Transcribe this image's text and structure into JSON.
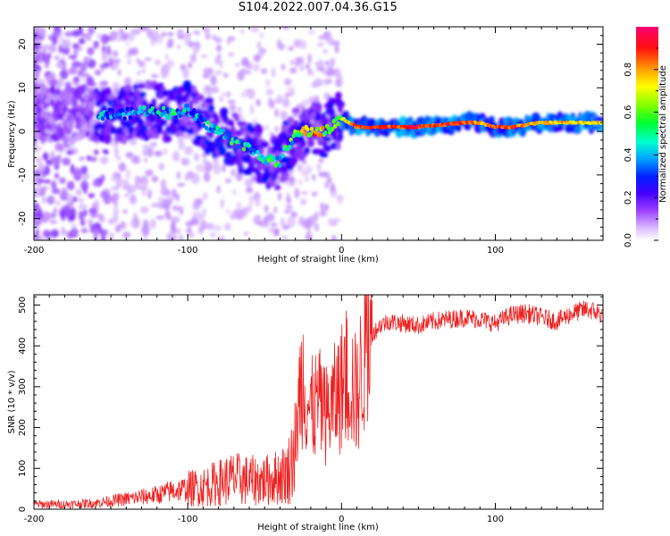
{
  "title": "S104.2022.007.04.36.G15",
  "chart_data": [
    {
      "type": "heatmap",
      "xlabel": "Height of straight line (km)",
      "ylabel": "Frequency (Hz)",
      "xlim": [
        -200,
        170
      ],
      "ylim": [
        -25,
        24
      ],
      "xticks": [
        -200,
        -100,
        0,
        100
      ],
      "yticks": [
        -20,
        -10,
        0,
        10,
        20
      ],
      "colorbar": {
        "label": "Normalized spectral amplitude",
        "range": [
          0,
          1
        ],
        "ticks": [
          "0.0",
          "0.2",
          "0.4",
          "0.6",
          "0.8"
        ],
        "colors": [
          "#ffffff",
          "#b980ff",
          "#6600ff",
          "#0000ff",
          "#00ccff",
          "#00ff66",
          "#66ff00",
          "#ffff00",
          "#ff8800",
          "#ff0000",
          "#ff0066"
        ]
      },
      "ridge": {
        "x": [
          -155,
          -140,
          -125,
          -110,
          -100,
          -90,
          -80,
          -70,
          -60,
          -50,
          -45,
          -40,
          -35,
          -30,
          -25,
          -20,
          -10,
          0,
          10,
          50,
          80,
          90,
          100,
          110,
          130,
          170
        ],
        "freq": [
          4,
          4,
          5,
          4,
          5,
          2,
          0,
          -2,
          -4,
          -6,
          -7,
          -7,
          -3,
          -1,
          0,
          0,
          0,
          3,
          1,
          1,
          2,
          2,
          1,
          1,
          2,
          2
        ],
        "amplitude": [
          0.45,
          0.4,
          0.45,
          0.5,
          0.45,
          0.5,
          0.5,
          0.55,
          0.5,
          0.55,
          0.55,
          0.5,
          0.6,
          0.6,
          0.7,
          0.85,
          0.75,
          0.65,
          0.9,
          0.95,
          0.9,
          0.8,
          0.9,
          0.85,
          0.8,
          0.75
        ]
      }
    },
    {
      "type": "line",
      "xlabel": "Height of straight line (km)",
      "ylabel": "SNR (10 * v/v)",
      "xlim": [
        -200,
        170
      ],
      "ylim": [
        0,
        525
      ],
      "xticks": [
        -200,
        -100,
        0,
        100
      ],
      "yticks": [
        0,
        100,
        200,
        300,
        400,
        500
      ],
      "color": "#ee2222",
      "series": [
        {
          "x": [
            -200,
            -180,
            -160,
            -150,
            -140,
            -130,
            -120,
            -110,
            -100,
            -90,
            -80,
            -70,
            -60,
            -50,
            -40,
            -35,
            -30,
            -27,
            -25,
            -22,
            -20,
            -15,
            -10,
            -5,
            0,
            5,
            10,
            15,
            20,
            25,
            30,
            40,
            50,
            60,
            70,
            80,
            90,
            100,
            110,
            120,
            130,
            140,
            150,
            160,
            170
          ],
          "y": [
            12,
            12,
            15,
            20,
            25,
            30,
            35,
            45,
            50,
            55,
            65,
            75,
            70,
            70,
            80,
            90,
            150,
            300,
            330,
            260,
            240,
            260,
            230,
            260,
            300,
            330,
            270,
            390,
            430,
            450,
            460,
            455,
            450,
            460,
            465,
            470,
            465,
            455,
            475,
            480,
            470,
            460,
            480,
            490,
            475
          ]
        }
      ]
    }
  ]
}
